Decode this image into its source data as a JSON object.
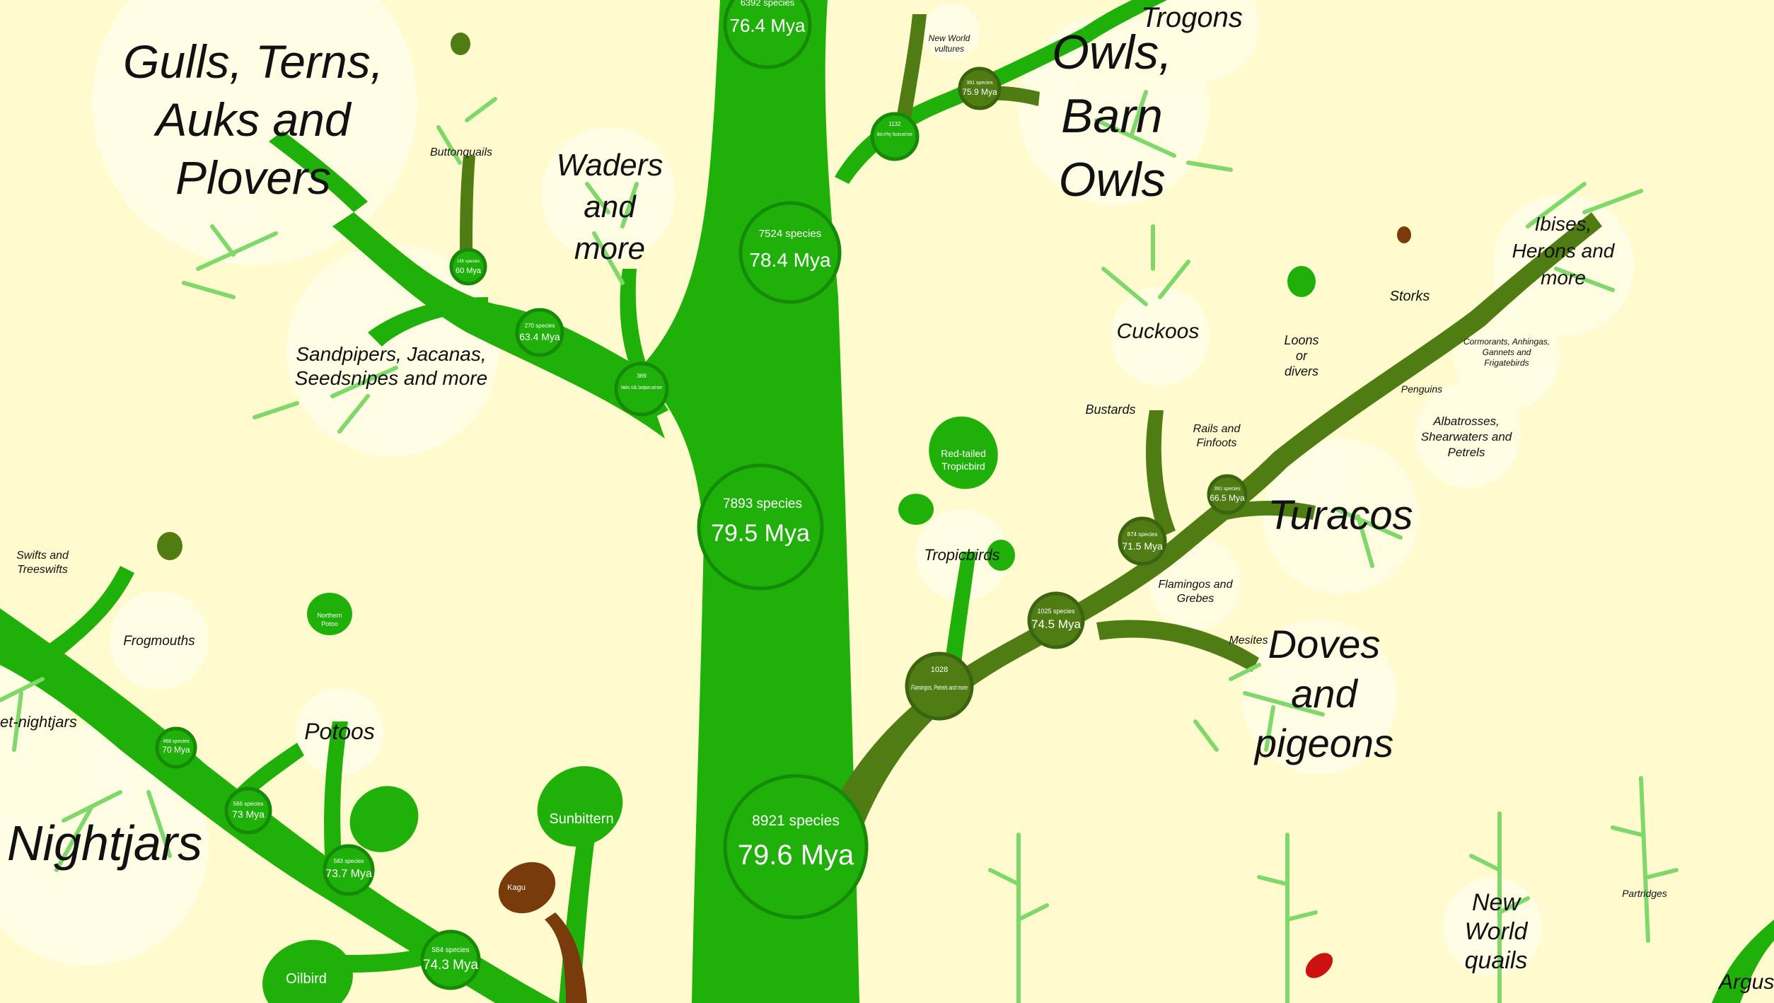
{
  "colors": {
    "background": "#fffbcf",
    "bright_green": "#1fb10a",
    "olive_green": "#4f7d14",
    "light_green": "#7fd86a",
    "brown": "#7a3b0b",
    "halo": "#fffde6"
  },
  "nodes": {
    "n6392": {
      "species": "6392 species",
      "age": "76.4 Mya"
    },
    "n7524": {
      "species": "7524 species",
      "age": "78.4 Mya"
    },
    "n7893": {
      "species": "7893 species",
      "age": "79.5 Mya"
    },
    "n8921": {
      "species": "8921 species",
      "age": "79.6 Mya"
    },
    "n1132": {
      "species": "1132",
      "desc": "Birds of Prey, Toucans and more"
    },
    "n391": {
      "species": "391 species",
      "age": "75.9 Mya"
    },
    "n165": {
      "species": "165 species",
      "age": "60 Mya"
    },
    "n270": {
      "species": "270 species",
      "age": "63.4 Mya"
    },
    "n369": {
      "species": "369",
      "desc": "Waders, Gulls, Sandpipers and more"
    },
    "n1028": {
      "species": "1028",
      "desc": "Flamingos, Petrels and more"
    },
    "n1025": {
      "species": "1025 species",
      "age": "74.5 Mya"
    },
    "n874": {
      "species": "874 species",
      "age": "71.5 Mya"
    },
    "n391b": {
      "species": "391 species",
      "age": "66.5 Mya"
    },
    "n468": {
      "species": "468 species",
      "age": "70 Mya"
    },
    "n566": {
      "species": "566 species",
      "age": "73 Mya"
    },
    "n583": {
      "species": "583 species",
      "age": "73.7 Mya"
    },
    "n584": {
      "species": "584 species",
      "age": "74.3 Mya"
    }
  },
  "labels": {
    "gulls": [
      "Gulls, Terns,",
      "Auks and",
      "Plovers"
    ],
    "buttonquails": "Buttonquails",
    "waders": [
      "Waders",
      "and",
      "more"
    ],
    "sandpipers": [
      "Sandpipers, Jacanas,",
      "Seedsnipes and more"
    ],
    "new_world_vultures": [
      "New World",
      "vultures"
    ],
    "trogons": "Trogons",
    "owls": [
      "Owls,",
      "Barn",
      "Owls"
    ],
    "ibises": [
      "Ibises,",
      "Herons and",
      "more"
    ],
    "storks": "Storks",
    "cormorants": [
      "Cormorants, Anhingas,",
      "Gannets and",
      "Frigatebirds"
    ],
    "penguins": "Penguins",
    "albatrosses": [
      "Albatrosses,",
      "Shearwaters and",
      "Petrels"
    ],
    "cuckoos": "Cuckoos",
    "loons": [
      "Loons",
      "or",
      "divers"
    ],
    "bustards": "Bustards",
    "rails": [
      "Rails and",
      "Finfoots"
    ],
    "turacos": "Turacos",
    "red_tailed_tropicbird": [
      "Red-tailed",
      "Tropicbird"
    ],
    "tropicbirds": "Tropicbirds",
    "flamingos": [
      "Flamingos and",
      "Grebes"
    ],
    "mesites": "Mesites",
    "doves": [
      "Doves",
      "and",
      "pigeons"
    ],
    "swifts": [
      "Swifts and",
      "Treeswifts"
    ],
    "frogmouths": "Frogmouths",
    "owlet_nightjars": "et-nightjars",
    "northern_potoo": [
      "Northern",
      "Potoo"
    ],
    "potoos": "Potoos",
    "nightjars": "Nightjars",
    "sunbittern": "Sunbittern",
    "kagu": "Kagu",
    "oilbird": "Oilbird",
    "new_world_quails": [
      "New",
      "World",
      "quails"
    ],
    "partridges": "Partridges",
    "argus": "Argus"
  }
}
